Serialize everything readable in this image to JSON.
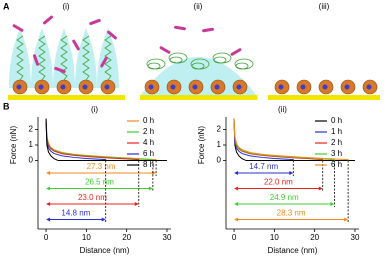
{
  "panel_labels": {
    "a": "A",
    "b": "B"
  },
  "schematic_labels": [
    "(i)",
    "(ii)",
    "(iii)"
  ],
  "chart_data": [
    {
      "type": "line",
      "title": "(i)",
      "xlabel": "Distance (nm)",
      "ylabel": "Force (nN)",
      "xlim": [
        -2,
        31
      ],
      "ylim": [
        -4.4,
        2.8
      ],
      "xticks": [
        0,
        10,
        20,
        30
      ],
      "yticks": [
        0,
        1,
        2
      ],
      "legend": "upper right",
      "series": [
        {
          "name": "0 h",
          "color": "#f58a1f",
          "x": [
            0,
            0.2,
            0.6,
            1.2,
            2,
            4,
            7,
            10,
            14,
            18,
            22,
            25,
            27.3,
            27.3
          ],
          "values": [
            2.7,
            1.6,
            1.1,
            0.85,
            0.7,
            0.52,
            0.4,
            0.33,
            0.26,
            0.2,
            0.14,
            0.1,
            0.06,
            0
          ]
        },
        {
          "name": "2 h",
          "color": "#3fcf2f",
          "x": [
            0,
            0.2,
            0.6,
            1.2,
            2,
            4,
            7,
            10,
            14,
            18,
            22,
            26.5,
            26.5
          ],
          "values": [
            2.6,
            1.5,
            1.0,
            0.8,
            0.65,
            0.48,
            0.37,
            0.3,
            0.23,
            0.17,
            0.11,
            0.05,
            0
          ]
        },
        {
          "name": "4 h",
          "color": "#e8231e",
          "x": [
            0,
            0.2,
            0.6,
            1.2,
            2,
            4,
            7,
            10,
            14,
            18,
            23.0,
            23.0
          ],
          "values": [
            2.6,
            1.4,
            0.95,
            0.75,
            0.6,
            0.44,
            0.33,
            0.26,
            0.19,
            0.13,
            0.06,
            0
          ]
        },
        {
          "name": "6 h",
          "color": "#2a2fcf",
          "x": [
            0,
            0.2,
            0.6,
            1.2,
            2,
            4,
            7,
            10,
            14.8,
            14.8
          ],
          "values": [
            2.5,
            1.2,
            0.8,
            0.6,
            0.45,
            0.3,
            0.2,
            0.13,
            0.06,
            0
          ]
        },
        {
          "name": "8 h",
          "color": "#000000",
          "x": [
            0,
            0.2,
            0.6,
            1.2,
            2,
            3,
            10,
            20,
            30
          ],
          "values": [
            2.7,
            1.0,
            0.55,
            0.3,
            0.12,
            0,
            0,
            0,
            0
          ]
        }
      ],
      "annotations": [
        {
          "text": "27.3 nm",
          "value": 27.3,
          "color": "#f58a1f"
        },
        {
          "text": "26.5 nm",
          "value": 26.5,
          "color": "#3fcf2f"
        },
        {
          "text": "23.0 nm",
          "value": 23.0,
          "color": "#e8231e"
        },
        {
          "text": "14.8 nm",
          "value": 14.8,
          "color": "#2a2fcf"
        }
      ]
    },
    {
      "type": "line",
      "title": "(ii)",
      "xlabel": "Distance (nm)",
      "ylabel": "Force (nN)",
      "xlim": [
        -2,
        31
      ],
      "ylim": [
        -4.4,
        2.8
      ],
      "xticks": [
        0,
        10,
        20,
        30
      ],
      "yticks": [
        0,
        1,
        2
      ],
      "legend": "upper right",
      "series": [
        {
          "name": "0 h",
          "color": "#000000",
          "x": [
            0,
            0.2,
            0.6,
            1.2,
            2,
            3,
            10,
            20,
            30
          ],
          "values": [
            2.7,
            1.0,
            0.55,
            0.3,
            0.12,
            0,
            0,
            0,
            0
          ]
        },
        {
          "name": "1 h",
          "color": "#2a2fcf",
          "x": [
            0,
            0.2,
            0.6,
            1.2,
            2,
            4,
            7,
            10,
            14.7,
            14.7
          ],
          "values": [
            2.5,
            1.2,
            0.8,
            0.6,
            0.45,
            0.3,
            0.2,
            0.13,
            0.06,
            0
          ]
        },
        {
          "name": "2 h",
          "color": "#e8231e",
          "x": [
            0,
            0.2,
            0.6,
            1.2,
            2,
            4,
            7,
            10,
            14,
            18,
            22.0,
            22.0
          ],
          "values": [
            2.6,
            1.4,
            0.95,
            0.75,
            0.6,
            0.44,
            0.33,
            0.26,
            0.19,
            0.13,
            0.06,
            0
          ]
        },
        {
          "name": "3 h",
          "color": "#3fcf2f",
          "x": [
            0,
            0.2,
            0.6,
            1.2,
            2,
            4,
            7,
            10,
            14,
            18,
            22,
            24.9,
            24.9
          ],
          "values": [
            2.6,
            1.5,
            1.0,
            0.8,
            0.65,
            0.48,
            0.37,
            0.3,
            0.23,
            0.17,
            0.11,
            0.05,
            0
          ]
        },
        {
          "name": "6 h",
          "color": "#f58a1f",
          "x": [
            0,
            0.2,
            0.6,
            1.2,
            2,
            4,
            7,
            10,
            14,
            18,
            22,
            25,
            28.3,
            28.3
          ],
          "values": [
            2.7,
            1.6,
            1.1,
            0.85,
            0.7,
            0.52,
            0.4,
            0.33,
            0.26,
            0.2,
            0.14,
            0.1,
            0.06,
            0
          ]
        }
      ],
      "annotations": [
        {
          "text": "14.7 nm",
          "value": 14.7,
          "color": "#2a2fcf"
        },
        {
          "text": "22.0 nm",
          "value": 22.0,
          "color": "#e8231e"
        },
        {
          "text": "24.9 nm",
          "value": 24.9,
          "color": "#3fcf2f"
        },
        {
          "text": "28.3 nm",
          "value": 28.3,
          "color": "#f58a1f"
        }
      ]
    }
  ]
}
